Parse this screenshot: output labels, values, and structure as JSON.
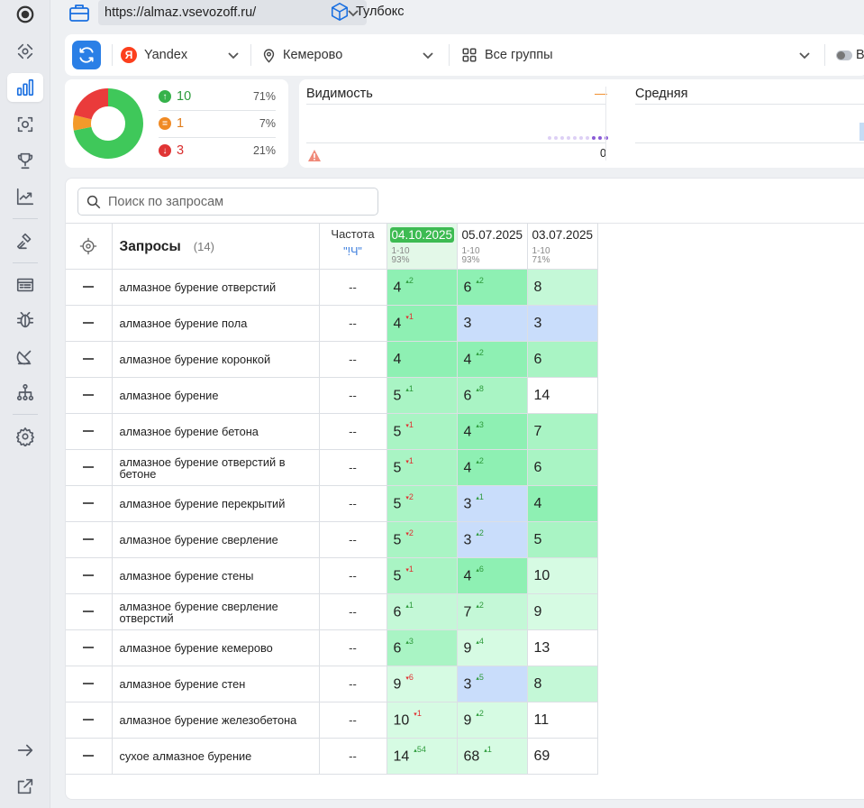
{
  "topbar": {
    "url": "https://almaz.vsevozoff.ru/",
    "toolbox_label": "Тулбокс"
  },
  "filters": {
    "engine": "Yandex",
    "region": "Кемерово",
    "groups": "Все группы",
    "extra": "В"
  },
  "summary": {
    "up": {
      "count": "10",
      "pct": "71%"
    },
    "same": {
      "count": "1",
      "pct": "7%"
    },
    "down": {
      "count": "3",
      "pct": "21%"
    },
    "donut_fractions": {
      "up": 0.71,
      "same": 0.07,
      "down": 0.21
    }
  },
  "visibility": {
    "title": "Видимость",
    "dash": "—",
    "zero": "0",
    "avg_title": "Средняя"
  },
  "table": {
    "search_placeholder": "Поиск по запросам",
    "queries_title": "Запросы",
    "queries_count": "(14)",
    "freq_title": "Частота",
    "freq_sub": "\"!Ч\"",
    "dates": [
      {
        "date": "04.10.2025",
        "range": "1-10",
        "pct": "93%"
      },
      {
        "date": "05.07.2025",
        "range": "1-10",
        "pct": "93%"
      },
      {
        "date": "03.07.2025",
        "range": "1-10",
        "pct": "71%"
      }
    ],
    "rows": [
      {
        "q": "алмазное бурение отверстий",
        "f": "--",
        "c": [
          [
            "4",
            "+2",
            "up",
            "bg1"
          ],
          [
            "6",
            "+2",
            "up",
            "bg1"
          ],
          [
            "8",
            "",
            "",
            "bg3"
          ]
        ]
      },
      {
        "q": "алмазное бурение пола",
        "f": "--",
        "c": [
          [
            "4",
            "1",
            "dn",
            "bg1"
          ],
          [
            "3",
            "",
            "",
            "bgb"
          ],
          [
            "3",
            "",
            "",
            "bgb"
          ]
        ]
      },
      {
        "q": "алмазное бурение коронкой",
        "f": "--",
        "c": [
          [
            "4",
            "",
            "",
            "bg1"
          ],
          [
            "4",
            "+2",
            "up",
            "bg1"
          ],
          [
            "6",
            "",
            "",
            "bg2"
          ]
        ]
      },
      {
        "q": "алмазное бурение",
        "f": "--",
        "c": [
          [
            "5",
            "+1",
            "up",
            "bg2"
          ],
          [
            "6",
            "+8",
            "up",
            "bg2"
          ],
          [
            "14",
            "",
            "",
            "bgw"
          ]
        ]
      },
      {
        "q": "алмазное бурение бетона",
        "f": "--",
        "c": [
          [
            "5",
            "1",
            "dn",
            "bg2"
          ],
          [
            "4",
            "+3",
            "up",
            "bg1"
          ],
          [
            "7",
            "",
            "",
            "bg2"
          ]
        ]
      },
      {
        "q": "алмазное бурение отверстий в бетоне",
        "f": "--",
        "c": [
          [
            "5",
            "1",
            "dn",
            "bg2"
          ],
          [
            "4",
            "+2",
            "up",
            "bg1"
          ],
          [
            "6",
            "",
            "",
            "bg2"
          ]
        ]
      },
      {
        "q": "алмазное бурение перекрытий",
        "f": "--",
        "c": [
          [
            "5",
            "2",
            "dn",
            "bg2"
          ],
          [
            "3",
            "+1",
            "up",
            "bgb"
          ],
          [
            "4",
            "",
            "",
            "bg1"
          ]
        ]
      },
      {
        "q": "алмазное бурение сверление",
        "f": "--",
        "c": [
          [
            "5",
            "2",
            "dn",
            "bg2"
          ],
          [
            "3",
            "+2",
            "up",
            "bgb"
          ],
          [
            "5",
            "",
            "",
            "bg2"
          ]
        ]
      },
      {
        "q": "алмазное бурение стены",
        "f": "--",
        "c": [
          [
            "5",
            "1",
            "dn",
            "bg2"
          ],
          [
            "4",
            "+6",
            "up",
            "bg1"
          ],
          [
            "10",
            "",
            "",
            "bg4"
          ]
        ]
      },
      {
        "q": "алмазное бурение сверление отверстий",
        "f": "--",
        "c": [
          [
            "6",
            "+1",
            "up",
            "bg3"
          ],
          [
            "7",
            "+2",
            "up",
            "bg3"
          ],
          [
            "9",
            "",
            "",
            "bg4"
          ]
        ]
      },
      {
        "q": "алмазное бурение кемерово",
        "f": "--",
        "c": [
          [
            "6",
            "+3",
            "up",
            "bg2"
          ],
          [
            "9",
            "+4",
            "up",
            "bg4"
          ],
          [
            "13",
            "",
            "",
            "bgw"
          ]
        ]
      },
      {
        "q": "алмазное бурение стен",
        "f": "--",
        "c": [
          [
            "9",
            "6",
            "dn",
            "bg4"
          ],
          [
            "3",
            "+5",
            "up",
            "bgb"
          ],
          [
            "8",
            "",
            "",
            "bg3"
          ]
        ]
      },
      {
        "q": "алмазное бурение железобетона",
        "f": "--",
        "c": [
          [
            "10",
            "1",
            "dn",
            "bg4"
          ],
          [
            "9",
            "+2",
            "up",
            "bg4"
          ],
          [
            "11",
            "",
            "",
            "bgw"
          ]
        ]
      },
      {
        "q": "сухое алмазное бурение",
        "f": "--",
        "c": [
          [
            "14",
            "+54",
            "up",
            "bg4"
          ],
          [
            "68",
            "+1",
            "up",
            "bg4"
          ],
          [
            "69",
            "",
            "",
            "bgw"
          ]
        ]
      }
    ]
  }
}
